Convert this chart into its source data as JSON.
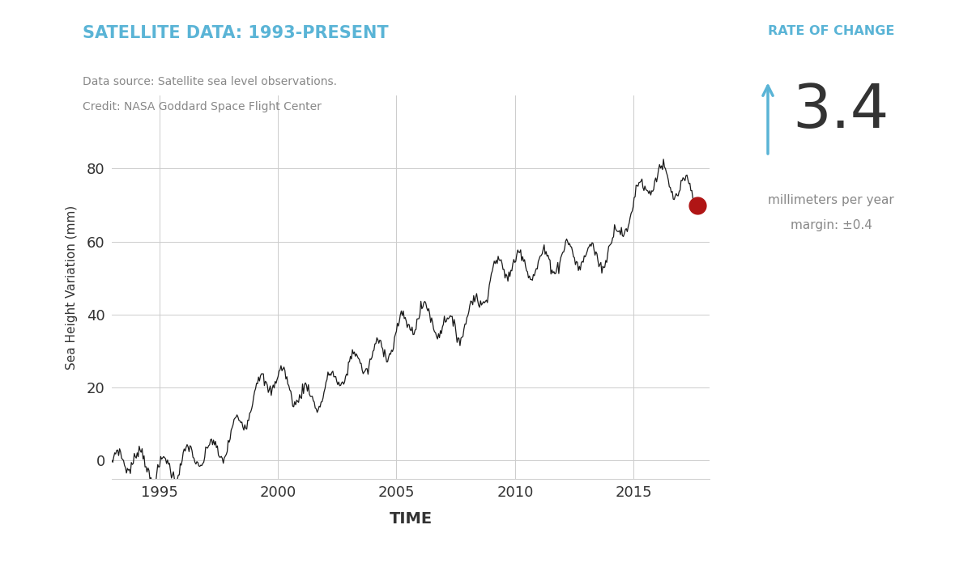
{
  "title": "SATELLITE DATA: 1993-PRESENT",
  "title_color": "#5ab4d6",
  "datasource_line1": "Data source: Satellite sea level observations.",
  "datasource_line2": "Credit: NASA Goddard Space Flight Center",
  "rate_of_change_label": "RATE OF CHANGE",
  "rate_value": "3.4",
  "rate_unit": "millimeters per year",
  "rate_margin": "margin: ±0.4",
  "xlabel": "TIME",
  "ylabel": "Sea Height Variation (mm)",
  "bg_color": "#ffffff",
  "line_color": "#1a1a1a",
  "grid_color": "#cccccc",
  "dot_color": "#b01515",
  "arrow_color": "#5ab4d6",
  "text_color_dark": "#333333",
  "text_color_light": "#888888",
  "ylim": [
    -5,
    100
  ],
  "xlim": [
    1993.0,
    2018.2
  ],
  "yticks": [
    0,
    20,
    40,
    60,
    80
  ],
  "xticks": [
    1995,
    2000,
    2005,
    2010,
    2015
  ]
}
